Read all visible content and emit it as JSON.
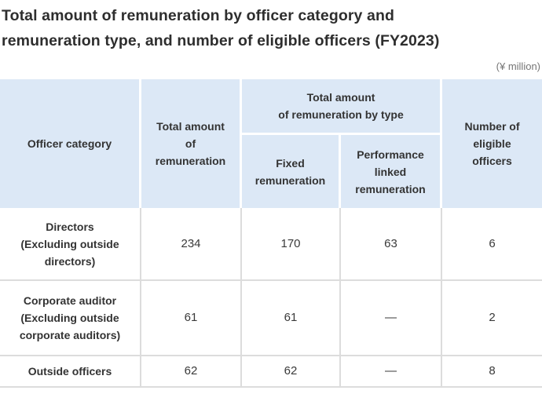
{
  "title": "Total amount of remuneration by officer category and\nremuneration type, and number of eligible officers (FY2023)",
  "unit_note": "(¥ million)",
  "table": {
    "headers": {
      "officer_category": "Officer category",
      "total_amount": "Total amount\nof\nremuneration",
      "by_type_group": "Total amount\nof remuneration by type",
      "fixed": "Fixed\nremuneration",
      "performance": "Performance\nlinked\nremuneration",
      "eligible": "Number of\neligible\nofficers"
    },
    "rows": [
      {
        "category": "Directors\n(Excluding outside\ndirectors)",
        "total": "234",
        "fixed": "170",
        "performance": "63",
        "eligible": "6"
      },
      {
        "category": "Corporate auditor\n(Excluding outside\ncorporate auditors)",
        "total": "61",
        "fixed": "61",
        "performance": "—",
        "eligible": "2"
      },
      {
        "category": "Outside officers",
        "total": "62",
        "fixed": "62",
        "performance": "—",
        "eligible": "8"
      }
    ]
  },
  "colors": {
    "header_bg": "#dce8f6",
    "body_border": "#dcdcdc",
    "text": "#333333",
    "note_text": "#757575"
  }
}
